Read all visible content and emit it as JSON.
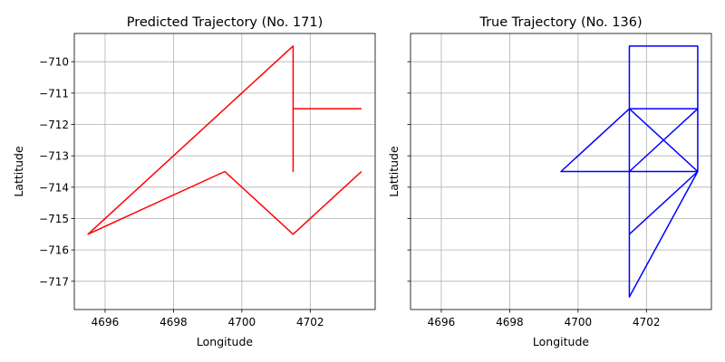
{
  "chart_data": [
    {
      "type": "line",
      "title": "Predicted Trajectory (No. 171)",
      "xlabel": "Longitude",
      "ylabel": "Lattitude",
      "xlim": [
        4695.1,
        4703.9
      ],
      "ylim": [
        -717.9,
        -709.1
      ],
      "xticks": [
        4696,
        4698,
        4700,
        4702
      ],
      "yticks": [
        -710,
        -711,
        -712,
        -713,
        -714,
        -715,
        -716,
        -717
      ],
      "grid": true,
      "color": "#ff0000",
      "series": [
        {
          "x": [
            4703.5,
            4701.5,
            4701.5,
            4701.5,
            4701.5,
            4701.5,
            4695.5,
            4699.5,
            4701.5,
            4703.5
          ],
          "y": [
            -711.5,
            -711.5,
            -713.5,
            -711.5,
            -713.5,
            -709.5,
            -715.5,
            -713.5,
            -715.5,
            -713.5
          ]
        }
      ]
    },
    {
      "type": "line",
      "title": "True Trajectory (No. 136)",
      "xlabel": "Longitude",
      "ylabel": "Lattitude",
      "xlim": [
        4695.1,
        4703.9
      ],
      "ylim": [
        -717.9,
        -709.1
      ],
      "xticks": [
        4696,
        4698,
        4700,
        4702
      ],
      "yticks": [
        -710,
        -711,
        -712,
        -713,
        -714,
        -715,
        -716,
        -717
      ],
      "ytick_labels_shown": false,
      "grid": true,
      "color": "#0000ff",
      "series": [
        {
          "x": [
            4701.5,
            4701.5,
            4703.5,
            4703.5,
            4701.5,
            4701.5,
            4703.5,
            4701.5,
            4701.5,
            4703.5,
            4701.5,
            4703.5,
            4701.5,
            4701.5,
            4703.5,
            4699.5,
            4701.5,
            4703.5
          ],
          "y": [
            -713.5,
            -709.5,
            -709.5,
            -713.5,
            -713.5,
            -711.5,
            -711.5,
            -713.5,
            -717.5,
            -713.5,
            -715.5,
            -713.5,
            -713.5,
            -711.5,
            -713.5,
            -713.5,
            -711.5,
            -711.5
          ]
        }
      ]
    }
  ]
}
